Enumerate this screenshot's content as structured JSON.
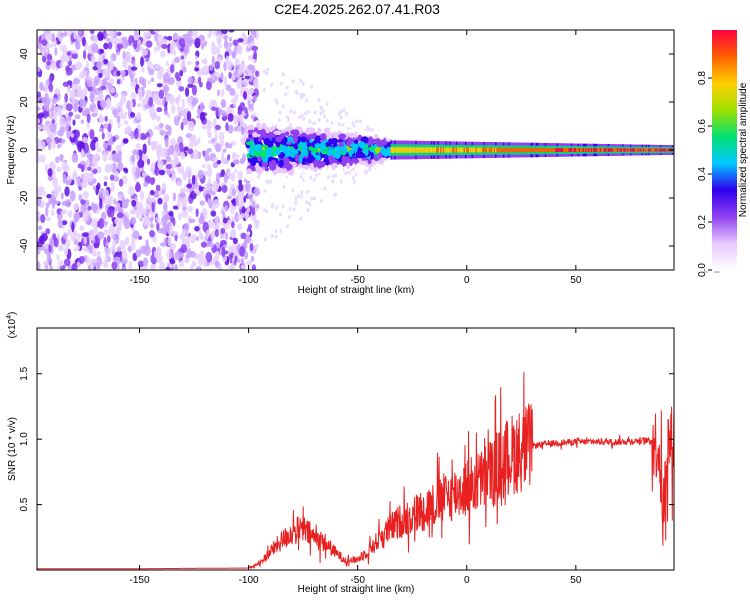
{
  "title": "C2E4.2025.262.07.41.R03",
  "chart_data": [
    {
      "type": "heatmap",
      "name": "spectrogram",
      "xlabel": "Height of straight line (km)",
      "ylabel": "Frequency (Hz)",
      "xlim": [
        -197,
        95
      ],
      "ylim": [
        -50,
        50
      ],
      "xticks": [
        -150,
        -100,
        -50,
        0,
        50
      ],
      "yticks": [
        -40,
        -20,
        0,
        20,
        40
      ],
      "noise_region_km": [
        -197,
        -100
      ],
      "transition_region_km": [
        -100,
        -35
      ],
      "carrier_region_km": [
        -35,
        95
      ],
      "carrier_frequency_hz": 0,
      "colorbar": {
        "label": "Normalized spectral amplitude",
        "range": [
          0.0,
          1.0
        ],
        "ticks": [
          0.0,
          0.2,
          0.4,
          0.6,
          0.8
        ],
        "tick_labels": [
          "0.0",
          "0.2",
          "0.4",
          "0.6",
          "0.8"
        ],
        "colormap": [
          "#ffffff",
          "#e8c8ff",
          "#9040f0",
          "#3000f0",
          "#00c8ff",
          "#00e070",
          "#a0e000",
          "#ffd000",
          "#ff6000",
          "#ff0040"
        ]
      }
    },
    {
      "type": "line",
      "name": "snr",
      "xlabel": "Height of straight line (km)",
      "ylabel": "SNR (10 * v/v)",
      "yscale_label": "(x10",
      "yscale_exp": "4",
      "yscale_close": ")",
      "xlim": [
        -197,
        95
      ],
      "ylim": [
        0,
        18500
      ],
      "xticks": [
        -150,
        -100,
        0,
        50
      ],
      "xtick_labels": [
        "-150",
        "-100",
        "0",
        "50"
      ],
      "xticks_extra": [
        -50
      ],
      "xtick_labels_extra": [
        "-50"
      ],
      "yticks": [
        5000,
        10000,
        15000
      ],
      "ytick_labels": [
        "0.5",
        "1.0",
        "1.5"
      ],
      "color": "#e82020",
      "series": [
        {
          "name": "SNR",
          "x": [
            -197,
            -150,
            -100,
            -95,
            -90,
            -85,
            -80,
            -75,
            -70,
            -65,
            -60,
            -55,
            -50,
            -45,
            -40,
            -35,
            -30,
            -25,
            -20,
            -15,
            -10,
            -5,
            0,
            5,
            10,
            15,
            20,
            25,
            30,
            35,
            40,
            50,
            60,
            70,
            80,
            85,
            88,
            90,
            92,
            95
          ],
          "y": [
            100,
            100,
            150,
            500,
            1400,
            2200,
            2900,
            3100,
            2500,
            2100,
            1300,
            700,
            800,
            1500,
            2400,
            3200,
            3800,
            4200,
            4600,
            5000,
            5500,
            5900,
            6300,
            6700,
            7300,
            8000,
            8800,
            9200,
            9500,
            9600,
            9700,
            9800,
            9800,
            9800,
            9900,
            9900,
            9500,
            4000,
            9800,
            10000
          ]
        }
      ]
    }
  ]
}
